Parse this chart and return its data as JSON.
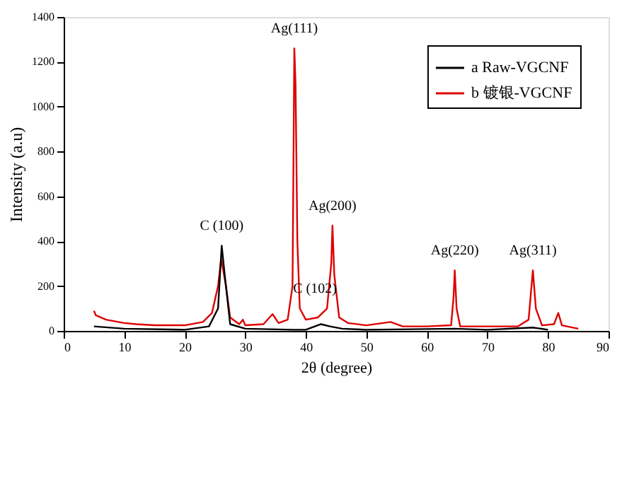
{
  "chart_data": {
    "type": "line",
    "xlabel": "2θ (degree)",
    "ylabel": "Intensity (a.u)",
    "xlim": [
      0,
      90
    ],
    "xticks": [
      0,
      10,
      20,
      30,
      40,
      50,
      60,
      70,
      80,
      90
    ],
    "ylim": [
      0,
      1400
    ],
    "yticks": [
      0,
      200,
      400,
      600,
      800,
      1000,
      1200,
      1400
    ],
    "grid": false,
    "legend": "top right",
    "marker": "none",
    "line_style": "solid",
    "series": [
      {
        "name": "a Raw-VGCNF",
        "color": "#000000",
        "x": [
          5,
          10,
          20,
          24,
          25.5,
          26.1,
          26.6,
          27.5,
          30,
          38,
          40,
          42.5,
          44,
          46,
          50,
          64.6,
          70,
          77.5,
          80
        ],
        "values": [
          20,
          10,
          5,
          20,
          100,
          380,
          250,
          30,
          10,
          5,
          5,
          30,
          20,
          10,
          5,
          10,
          5,
          15,
          5
        ]
      },
      {
        "name": "b 镀银-VGCNF",
        "color": "#dd0000",
        "x": [
          5,
          5.3,
          7,
          10,
          12,
          15,
          20,
          23,
          24.5,
          25.5,
          26,
          26.3,
          26.8,
          27.5,
          29,
          29.6,
          30,
          33,
          34.5,
          35.5,
          37,
          37.8,
          38.1,
          38.3,
          38.6,
          39,
          40,
          42,
          43.5,
          44.2,
          44.4,
          44.7,
          45.5,
          47,
          50,
          54,
          56,
          60,
          64,
          64.4,
          64.6,
          64.9,
          65.5,
          70,
          75,
          76.8,
          77.5,
          78,
          79,
          81,
          81.7,
          82.3,
          85
        ],
        "values": [
          90,
          70,
          50,
          35,
          30,
          25,
          25,
          40,
          80,
          200,
          320,
          280,
          200,
          60,
          30,
          50,
          25,
          30,
          75,
          35,
          50,
          200,
          1260,
          1100,
          400,
          100,
          50,
          60,
          100,
          300,
          470,
          250,
          60,
          35,
          25,
          40,
          20,
          20,
          25,
          150,
          270,
          100,
          20,
          20,
          20,
          50,
          270,
          100,
          25,
          30,
          80,
          25,
          10
        ]
      }
    ],
    "annotations": [
      {
        "text": "C (100)",
        "x": 26.1,
        "y": 380
      },
      {
        "text": "Ag(111)",
        "x": 38.1,
        "y": 1260
      },
      {
        "text": "Ag(200)",
        "x": 44.4,
        "y": 470
      },
      {
        "text": "C (102)",
        "x": 41.5,
        "y": 100
      },
      {
        "text": "Ag(220)",
        "x": 64.6,
        "y": 270
      },
      {
        "text": "Ag(311)",
        "x": 77.5,
        "y": 270
      }
    ]
  }
}
